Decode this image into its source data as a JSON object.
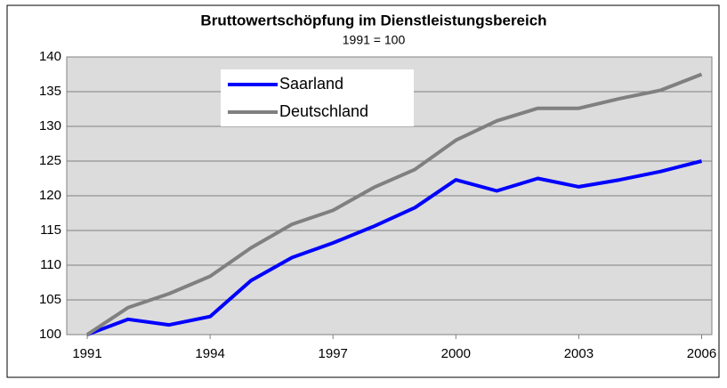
{
  "chart_data": {
    "type": "line",
    "title": "Bruttowertschöpfung im Dienstleistungsbereich",
    "subtitle": "1991 = 100",
    "x": [
      1991,
      1992,
      1993,
      1994,
      1995,
      1996,
      1997,
      1998,
      1999,
      2000,
      2001,
      2002,
      2003,
      2004,
      2005,
      2006
    ],
    "series": [
      {
        "name": "Saarland",
        "color": "#0000ff",
        "values": [
          100,
          102.2,
          101.4,
          102.6,
          107.8,
          111.1,
          113.2,
          115.6,
          118.3,
          122.3,
          120.7,
          122.5,
          121.3,
          122.3,
          123.5,
          125.0
        ]
      },
      {
        "name": "Deutschland",
        "color": "#808080",
        "values": [
          100,
          103.9,
          105.9,
          108.4,
          112.5,
          115.9,
          117.9,
          121.2,
          123.8,
          128.0,
          130.8,
          132.6,
          132.6,
          134.0,
          135.2,
          137.5
        ]
      }
    ],
    "xlim": [
      1990.5,
      2006.25
    ],
    "xticks": [
      1991,
      1994,
      1997,
      2000,
      2003,
      2006
    ],
    "ylim": [
      100,
      140
    ],
    "yticks": [
      100,
      105,
      110,
      115,
      120,
      125,
      130,
      135,
      140
    ],
    "grid": true
  }
}
